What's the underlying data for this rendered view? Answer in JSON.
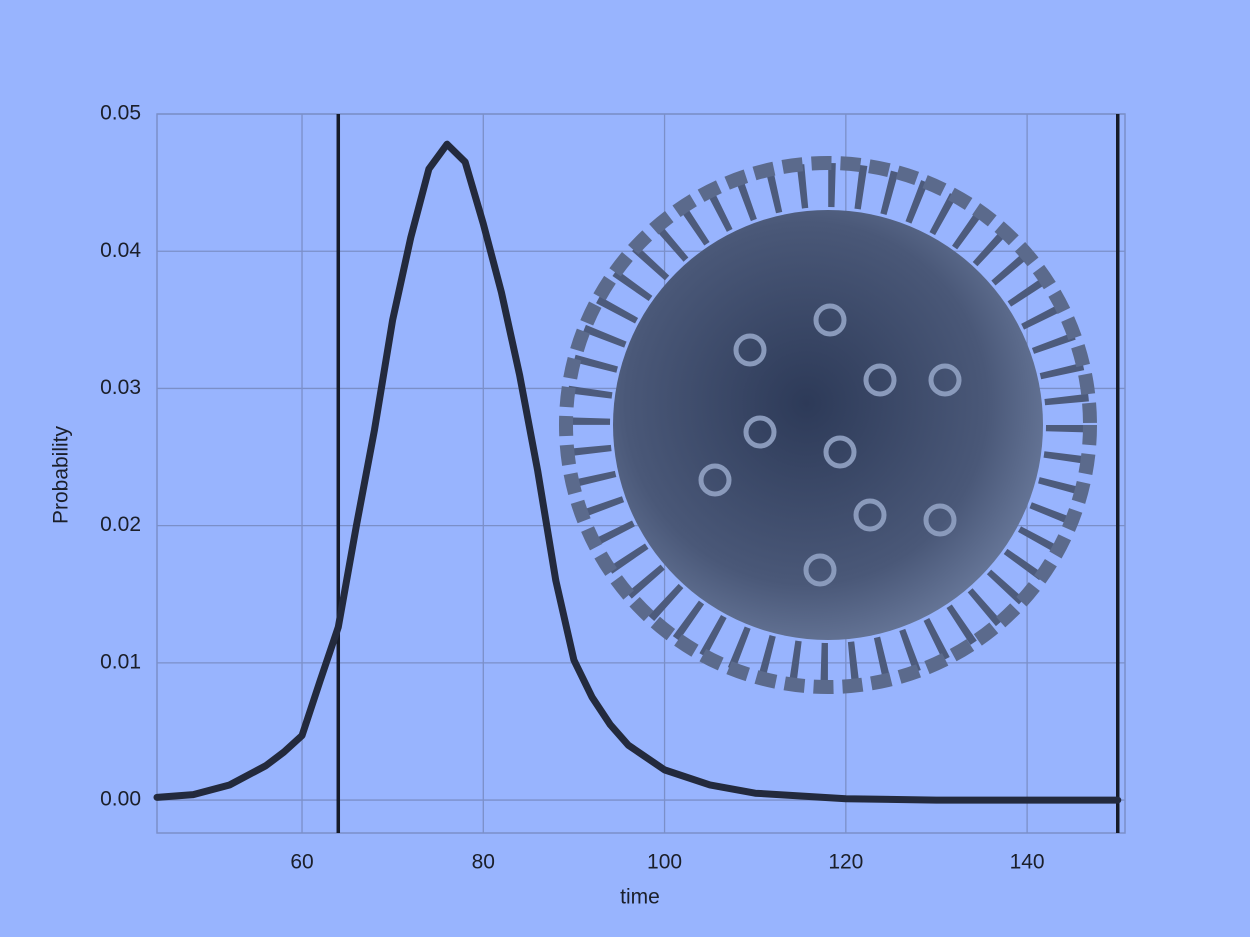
{
  "chart_data": {
    "type": "line",
    "xlabel": "time",
    "ylabel": "Probability",
    "x": [
      44,
      48,
      52,
      56,
      58,
      60,
      62,
      64,
      66,
      68,
      70,
      72,
      74,
      76,
      78,
      80,
      82,
      84,
      86,
      88,
      90,
      92,
      94,
      96,
      100,
      105,
      110,
      120,
      130,
      150
    ],
    "series": [
      {
        "color": "#232a3d",
        "values": [
          0.0002,
          0.0004,
          0.0011,
          0.0025,
          0.0035,
          0.0047,
          0.0087,
          0.0126,
          0.02,
          0.027,
          0.035,
          0.041,
          0.046,
          0.0478,
          0.0465,
          0.042,
          0.037,
          0.031,
          0.024,
          0.016,
          0.0102,
          0.0075,
          0.0055,
          0.004,
          0.0022,
          0.0011,
          0.0005,
          0.0001,
          0,
          0
        ]
      }
    ],
    "vlines": [
      64,
      150
    ],
    "vline_color": "#161b28",
    "xlim": [
      44,
      150.8
    ],
    "ylim": [
      -0.0024,
      0.05
    ],
    "xticks": [
      60,
      80,
      100,
      120,
      140
    ],
    "yticks": [
      {
        "value": 0,
        "label": "0.00"
      },
      0.01,
      0.02,
      0.03,
      0.04,
      0.05
    ],
    "grid": true
  }
}
